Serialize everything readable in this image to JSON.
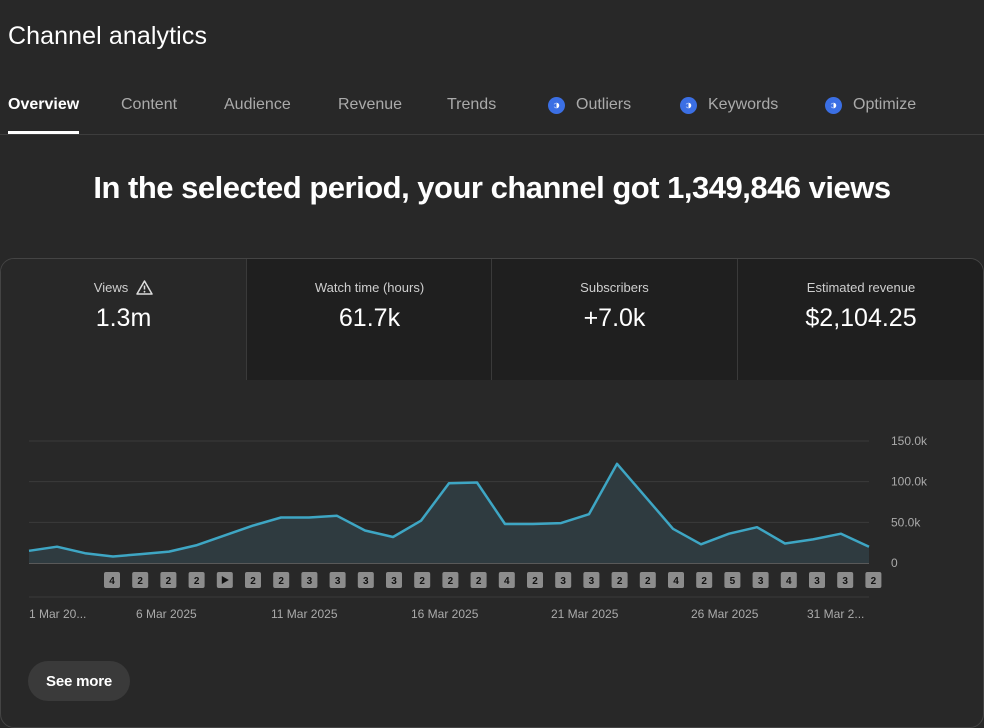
{
  "page_title": "Channel analytics",
  "tabs": [
    {
      "label": "Overview",
      "active": true,
      "icon": null
    },
    {
      "label": "Content",
      "active": false,
      "icon": null
    },
    {
      "label": "Audience",
      "active": false,
      "icon": null
    },
    {
      "label": "Revenue",
      "active": false,
      "icon": null
    },
    {
      "label": "Trends",
      "active": false,
      "icon": null
    },
    {
      "label": "Outliers",
      "active": false,
      "icon": "extension-icon"
    },
    {
      "label": "Keywords",
      "active": false,
      "icon": "extension-icon"
    },
    {
      "label": "Optimize",
      "active": false,
      "icon": "extension-icon"
    }
  ],
  "headline": "In the selected period, your channel got 1,349,846 views",
  "metrics": [
    {
      "label": "Views",
      "value": "1.3m",
      "icon": "warning-icon",
      "active": true
    },
    {
      "label": "Watch time (hours)",
      "value": "61.7k",
      "active": false
    },
    {
      "label": "Subscribers",
      "value": "+7.0k",
      "active": false
    },
    {
      "label": "Estimated revenue",
      "value": "$2,104.25",
      "active": false
    }
  ],
  "colors": {
    "line": "#3ea6c4",
    "background": "#282828",
    "extension_icon": "#3b6fe4"
  },
  "chart_data": {
    "type": "area",
    "series": [
      {
        "values": [
          15000,
          20000,
          12000,
          8000,
          11000,
          14000,
          22000,
          34000,
          46000,
          56000,
          56000,
          58000,
          40000,
          32000,
          52000,
          98000,
          99000,
          48000,
          48000,
          49000,
          60000,
          122000,
          82000,
          42000,
          23000,
          36000,
          44000,
          24000,
          29000,
          36000,
          20000
        ]
      }
    ],
    "y_ticks": [
      "150.0k",
      "100.0k",
      "50.0k",
      "0"
    ],
    "ylim": [
      0,
      150000
    ],
    "x_labels": [
      "1 Mar 20...",
      "6 Mar 2025",
      "11 Mar 2025",
      "16 Mar 2025",
      "21 Mar 2025",
      "26 Mar 2025",
      "31 Mar 2..."
    ],
    "markers": [
      "4",
      "2",
      "2",
      "2",
      "play",
      "2",
      "2",
      "3",
      "3",
      "3",
      "3",
      "2",
      "2",
      "2",
      "4",
      "2",
      "3",
      "3",
      "2",
      "2",
      "4",
      "2",
      "5",
      "3",
      "4",
      "3",
      "3",
      "2"
    ],
    "grid": true
  },
  "see_more_label": "See more"
}
